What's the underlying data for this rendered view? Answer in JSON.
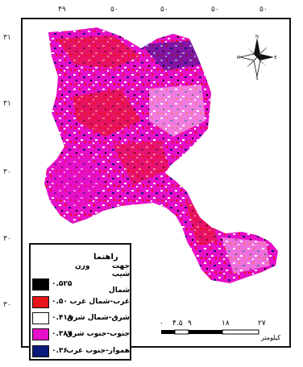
{
  "map": {
    "top_ticks": [
      "۴۹",
      "۵۰",
      "۵۰",
      "۵۰",
      "۵۰"
    ],
    "side_ticks": [
      "۳۱",
      "۳۱",
      "۳۰",
      "۳۰",
      "۳۰"
    ]
  },
  "legend": {
    "title": "راهنما",
    "header_aspect": "جهت شیب",
    "header_weight": "وزن",
    "items": [
      {
        "label": "شمال",
        "value": "۰.۵۲۵",
        "color": "#000000"
      },
      {
        "label": "غرب-شمال غرب",
        "value": "۰.۵۰",
        "color": "#e8141a"
      },
      {
        "label": "شرق-شمال شرق",
        "value": "۰.۴۱۸",
        "color": "#ffffff"
      },
      {
        "label": "جنوب-جنوب شرق",
        "value": "۰.۳۸۷",
        "color": "#e610c8"
      },
      {
        "label": "هموار-جنوب غرب",
        "value": "۰.۳۶",
        "color": "#0a1a78"
      }
    ]
  },
  "scale": {
    "labels": [
      "۰",
      "۴.۵",
      "۹",
      "۱۸",
      "۲۷"
    ],
    "unit": "کیلومتر"
  },
  "north_arrow": {
    "letters": {
      "n": "N",
      "s": "S",
      "e": "E",
      "w": "W"
    }
  }
}
